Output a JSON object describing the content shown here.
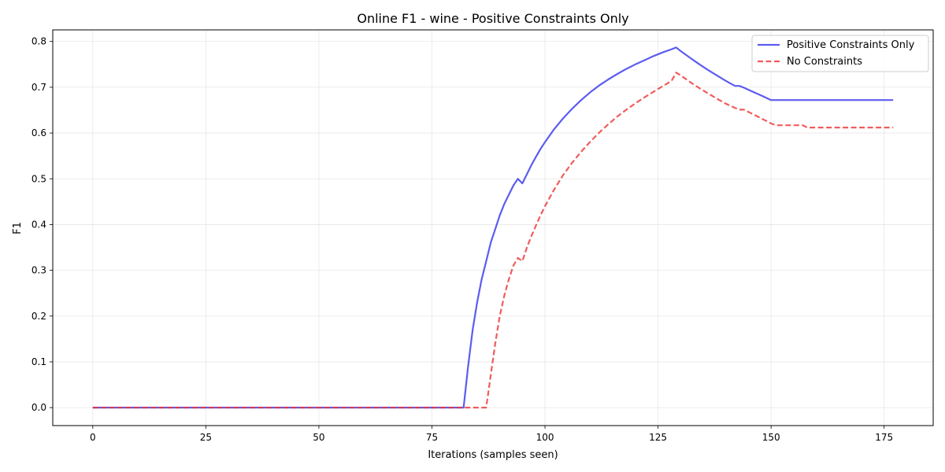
{
  "chart_data": {
    "type": "line",
    "title": "Online F1 - wine - Positive Constraints Only",
    "xlabel": "Iterations (samples seen)",
    "ylabel": "F1",
    "xlim": [
      -8.85,
      185.85
    ],
    "ylim": [
      -0.0393,
      0.8253
    ],
    "xticks": [
      0,
      25,
      50,
      75,
      100,
      125,
      150,
      175
    ],
    "xtick_labels": [
      "0",
      "25",
      "50",
      "75",
      "100",
      "125",
      "150",
      "175"
    ],
    "yticks": [
      0.0,
      0.1,
      0.2,
      0.3,
      0.4,
      0.5,
      0.6,
      0.7,
      0.8
    ],
    "ytick_labels": [
      "0.0",
      "0.1",
      "0.2",
      "0.3",
      "0.4",
      "0.5",
      "0.6",
      "0.7",
      "0.8"
    ],
    "grid": true,
    "legend_position": "top-right",
    "series": [
      {
        "name": "Positive Constraints Only",
        "color": "#3333ee",
        "style": "solid",
        "x": [
          0,
          10,
          20,
          30,
          40,
          50,
          60,
          70,
          80,
          82,
          83,
          84,
          85,
          86,
          87,
          88,
          89,
          90,
          91,
          92,
          93,
          94,
          95,
          96,
          97,
          98,
          99,
          100,
          102,
          104,
          106,
          108,
          110,
          112,
          114,
          116,
          118,
          120,
          122,
          124,
          126,
          128,
          129,
          130,
          132,
          134,
          136,
          138,
          140,
          142,
          143,
          144,
          146,
          148,
          150,
          155,
          160,
          165,
          170,
          175,
          177
        ],
        "y": [
          0,
          0,
          0,
          0,
          0,
          0,
          0,
          0,
          0,
          0,
          0.09,
          0.17,
          0.23,
          0.28,
          0.32,
          0.36,
          0.39,
          0.42,
          0.445,
          0.465,
          0.485,
          0.5,
          0.49,
          0.51,
          0.53,
          0.548,
          0.565,
          0.58,
          0.608,
          0.632,
          0.653,
          0.672,
          0.689,
          0.704,
          0.717,
          0.729,
          0.74,
          0.75,
          0.759,
          0.768,
          0.776,
          0.783,
          0.787,
          0.779,
          0.765,
          0.751,
          0.738,
          0.726,
          0.714,
          0.703,
          0.703,
          0.699,
          0.69,
          0.681,
          0.672,
          0.672,
          0.672,
          0.672,
          0.672,
          0.672,
          0.672
        ]
      },
      {
        "name": "No Constraints",
        "color": "#ee3333",
        "style": "dashed",
        "x": [
          0,
          10,
          20,
          30,
          40,
          50,
          60,
          70,
          80,
          85,
          87,
          88,
          89,
          90,
          91,
          92,
          93,
          94,
          95,
          96,
          97,
          98,
          99,
          100,
          102,
          104,
          106,
          108,
          110,
          112,
          114,
          116,
          118,
          120,
          122,
          124,
          126,
          128,
          129,
          130,
          132,
          134,
          136,
          138,
          140,
          142,
          143,
          144,
          146,
          148,
          150,
          151,
          155,
          157,
          158,
          160,
          165,
          170,
          175,
          177
        ],
        "y": [
          0,
          0,
          0,
          0,
          0,
          0,
          0,
          0,
          0,
          0,
          0,
          0.07,
          0.14,
          0.2,
          0.245,
          0.28,
          0.31,
          0.327,
          0.32,
          0.35,
          0.375,
          0.398,
          0.42,
          0.44,
          0.476,
          0.508,
          0.535,
          0.559,
          0.581,
          0.601,
          0.619,
          0.636,
          0.651,
          0.665,
          0.678,
          0.69,
          0.702,
          0.714,
          0.732,
          0.726,
          0.712,
          0.699,
          0.687,
          0.675,
          0.664,
          0.655,
          0.651,
          0.651,
          0.641,
          0.631,
          0.621,
          0.617,
          0.617,
          0.617,
          0.612,
          0.612,
          0.612,
          0.612,
          0.612,
          0.612
        ]
      }
    ]
  }
}
